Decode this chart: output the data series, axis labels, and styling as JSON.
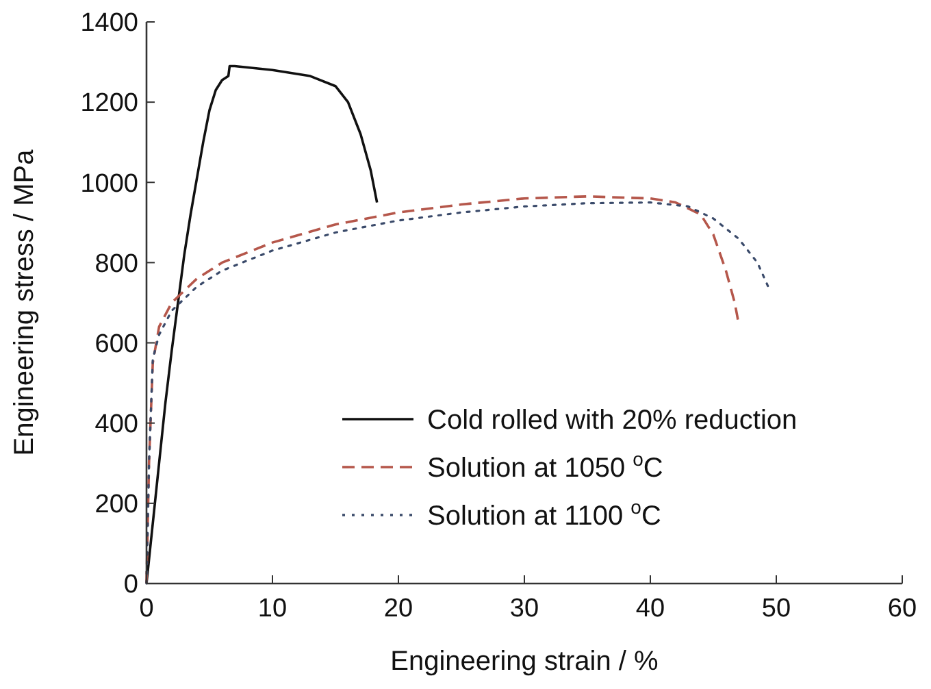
{
  "chart_data": {
    "type": "line",
    "xlabel": "Engineering strain / %",
    "ylabel": "Engineering stress / MPa",
    "xlim": [
      0,
      60
    ],
    "xticks": [
      0,
      10,
      20,
      30,
      40,
      50,
      60
    ],
    "ylim": [
      0,
      1400
    ],
    "yticks": [
      0,
      200,
      400,
      600,
      800,
      1000,
      1200,
      1400
    ],
    "legend": "bottom right",
    "grid": false,
    "series": [
      {
        "name": "Cold rolled with 20% reduction",
        "color": "#111111",
        "line_style": "solid",
        "x": [
          0,
          0.5,
          1,
          1.5,
          2,
          2.5,
          3,
          3.5,
          4,
          4.5,
          5,
          5.5,
          6,
          6.5,
          6.6,
          7,
          10,
          13,
          15,
          16,
          17,
          17.8,
          18.3
        ],
        "values": [
          0,
          150,
          300,
          450,
          580,
          700,
          820,
          920,
          1010,
          1100,
          1180,
          1230,
          1255,
          1265,
          1290,
          1290,
          1280,
          1265,
          1240,
          1200,
          1120,
          1030,
          950
        ]
      },
      {
        "name": "Solution at 1050 $^{o}$C",
        "color": "#b5574b",
        "line_style": "dashed",
        "x": [
          0,
          0.2,
          0.5,
          1,
          2,
          4,
          6,
          10,
          15,
          20,
          25,
          30,
          35,
          40,
          42,
          44,
          45,
          46,
          46.7,
          47
        ],
        "values": [
          0,
          300,
          550,
          640,
          700,
          760,
          800,
          850,
          895,
          925,
          945,
          960,
          965,
          960,
          950,
          920,
          870,
          780,
          700,
          650
        ]
      },
      {
        "name": "Solution at 1100 $^{o}$C",
        "color": "#3a4a6a",
        "line_style": "dotted",
        "x": [
          0,
          0.2,
          0.5,
          1,
          2,
          4,
          6,
          10,
          15,
          20,
          25,
          30,
          35,
          40,
          43,
          45,
          47,
          48.5,
          49.5
        ],
        "values": [
          0,
          300,
          560,
          620,
          680,
          740,
          780,
          830,
          875,
          905,
          925,
          940,
          948,
          950,
          940,
          910,
          860,
          800,
          730
        ]
      }
    ]
  }
}
